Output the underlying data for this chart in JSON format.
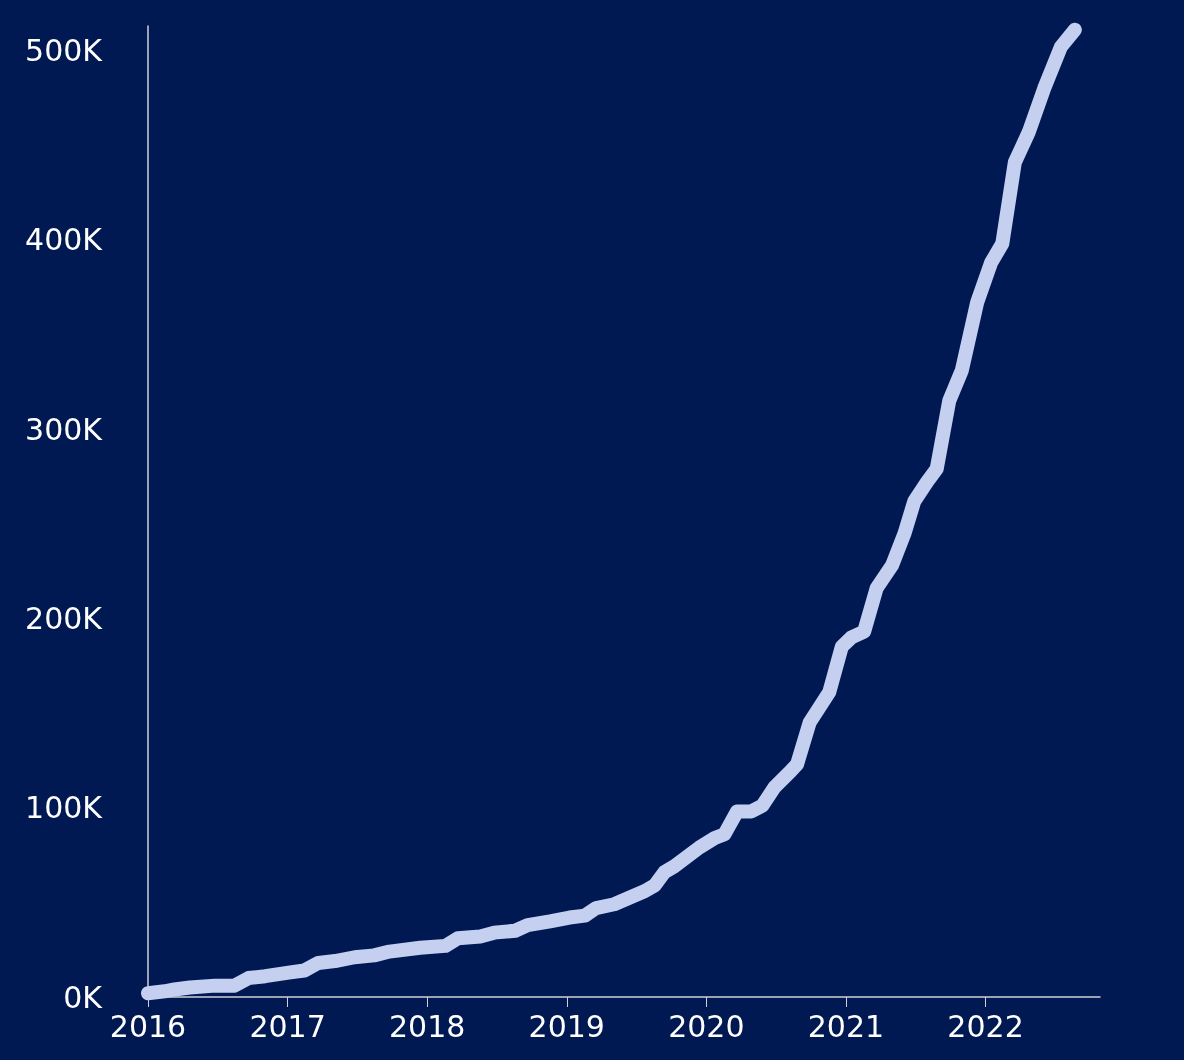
{
  "chart_data": {
    "type": "line",
    "color": "#c5d0f0",
    "line_style": "solid",
    "grid": false,
    "x": [
      2016.0,
      2016.12,
      2016.19,
      2016.3,
      2016.48,
      2016.62,
      2016.72,
      2016.84,
      2017.02,
      2017.12,
      2017.22,
      2017.34,
      2017.48,
      2017.62,
      2017.73,
      2017.95,
      2018.13,
      2018.22,
      2018.38,
      2018.48,
      2018.63,
      2018.72,
      2018.88,
      2019.02,
      2019.13,
      2019.21,
      2019.34,
      2019.56,
      2019.63,
      2019.7,
      2019.77,
      2019.95,
      2020.06,
      2020.13,
      2020.22,
      2020.32,
      2020.4,
      2020.49,
      2020.6,
      2020.65,
      2020.74,
      2020.88,
      2020.97,
      2021.04,
      2021.13,
      2021.22,
      2021.33,
      2021.42,
      2021.49,
      2021.58,
      2021.65,
      2021.74,
      2021.83,
      2021.94,
      2022.04,
      2022.12,
      2022.21,
      2022.31,
      2022.42,
      2022.54,
      2022.64
    ],
    "values": [
      2000,
      3000,
      4000,
      5000,
      6000,
      6000,
      10000,
      11000,
      13000,
      14000,
      18000,
      19000,
      21000,
      22000,
      24000,
      26000,
      27000,
      31000,
      32000,
      34000,
      35000,
      38000,
      40000,
      42000,
      43000,
      47000,
      49000,
      56000,
      59000,
      66000,
      69000,
      79000,
      84000,
      86000,
      98000,
      98000,
      101000,
      111000,
      119000,
      123000,
      145000,
      161000,
      185000,
      190000,
      193000,
      216000,
      228000,
      245000,
      262000,
      272000,
      279000,
      315000,
      331000,
      367000,
      388000,
      398000,
      441000,
      457000,
      480000,
      502000,
      511000
    ],
    "xlim": [
      2016,
      2022.82
    ],
    "xticks": [
      2016,
      2017,
      2018,
      2019,
      2020,
      2021,
      2022
    ],
    "ylim": [
      0,
      513000
    ],
    "yticks": [
      {
        "value": 0,
        "label": "0K"
      },
      {
        "value": 100000,
        "label": "100K"
      },
      {
        "value": 200000,
        "label": "200K"
      },
      {
        "value": 300000,
        "label": "300K"
      },
      {
        "value": 400000,
        "label": "400K"
      },
      {
        "value": 500000,
        "label": "500K"
      }
    ]
  }
}
